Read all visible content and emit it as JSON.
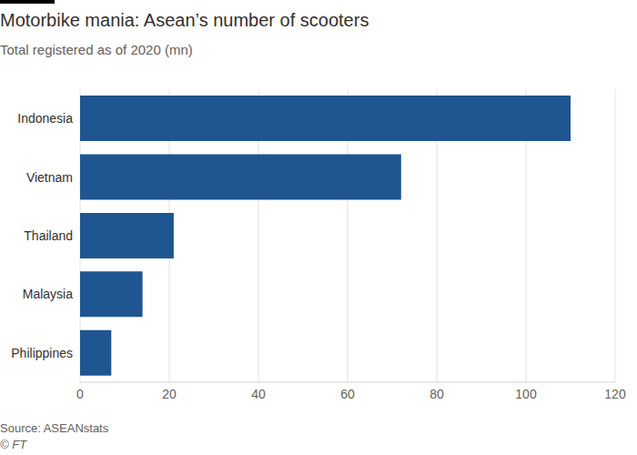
{
  "chart_data": {
    "type": "bar",
    "title": "Motorbike mania: Asean’s number of scooters",
    "subtitle": "Total registered as of 2020 (mn)",
    "source": "Source: ASEANstats",
    "copyright": "© FT",
    "orientation": "horizontal",
    "categories": [
      "Indonesia",
      "Vietnam",
      "Thailand",
      "Malaysia",
      "Philippines"
    ],
    "values": [
      110,
      72,
      21,
      14,
      7
    ],
    "color": "#1f5591",
    "xlim": [
      0,
      120
    ],
    "xticks": [
      0,
      20,
      40,
      60,
      80,
      100,
      120
    ],
    "grid": true
  }
}
